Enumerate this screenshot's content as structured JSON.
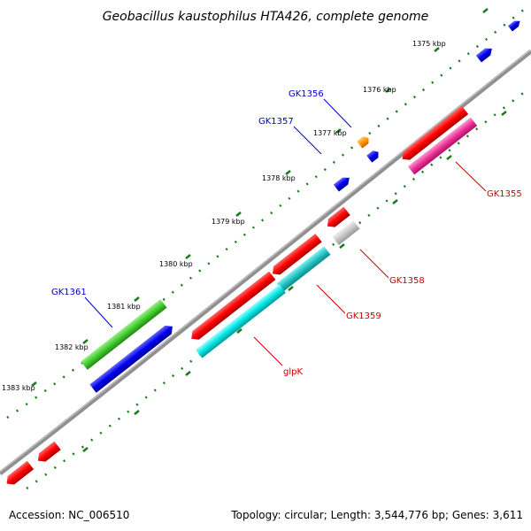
{
  "title": "Geobacillus kaustophilus HTA426, complete genome",
  "footer": {
    "accession": "Accession: NC_006510",
    "summary": "Topology: circular; Length: 3,544,776 bp; Genes: 3,611"
  },
  "ticks": [
    "1375 kbp",
    "1376 kbp",
    "1377 kbp",
    "1378 kbp",
    "1379 kbp",
    "1380 kbp",
    "1381 kbp",
    "1382 kbp",
    "1383 kbp"
  ],
  "gene_labels": {
    "gk1356": "GK1356",
    "gk1357": "GK1357",
    "gk1361": "GK1361",
    "gk1355": "GK1355",
    "gk1358": "GK1358",
    "gk1359": "GK1359",
    "glpk": "glpK"
  },
  "colors": {
    "backbone": "#808080",
    "dots": "#1a7a1a",
    "forward_label": "#0000cc",
    "reverse_label": "#cc0000",
    "red": "#ff0000",
    "blue": "#0000ee",
    "green": "#44cc33",
    "cyan": "#00e5e5",
    "teal": "#22c4c4",
    "magenta": "#ee3399",
    "orange": "#ff9900",
    "grey": "#c8c8c8"
  }
}
